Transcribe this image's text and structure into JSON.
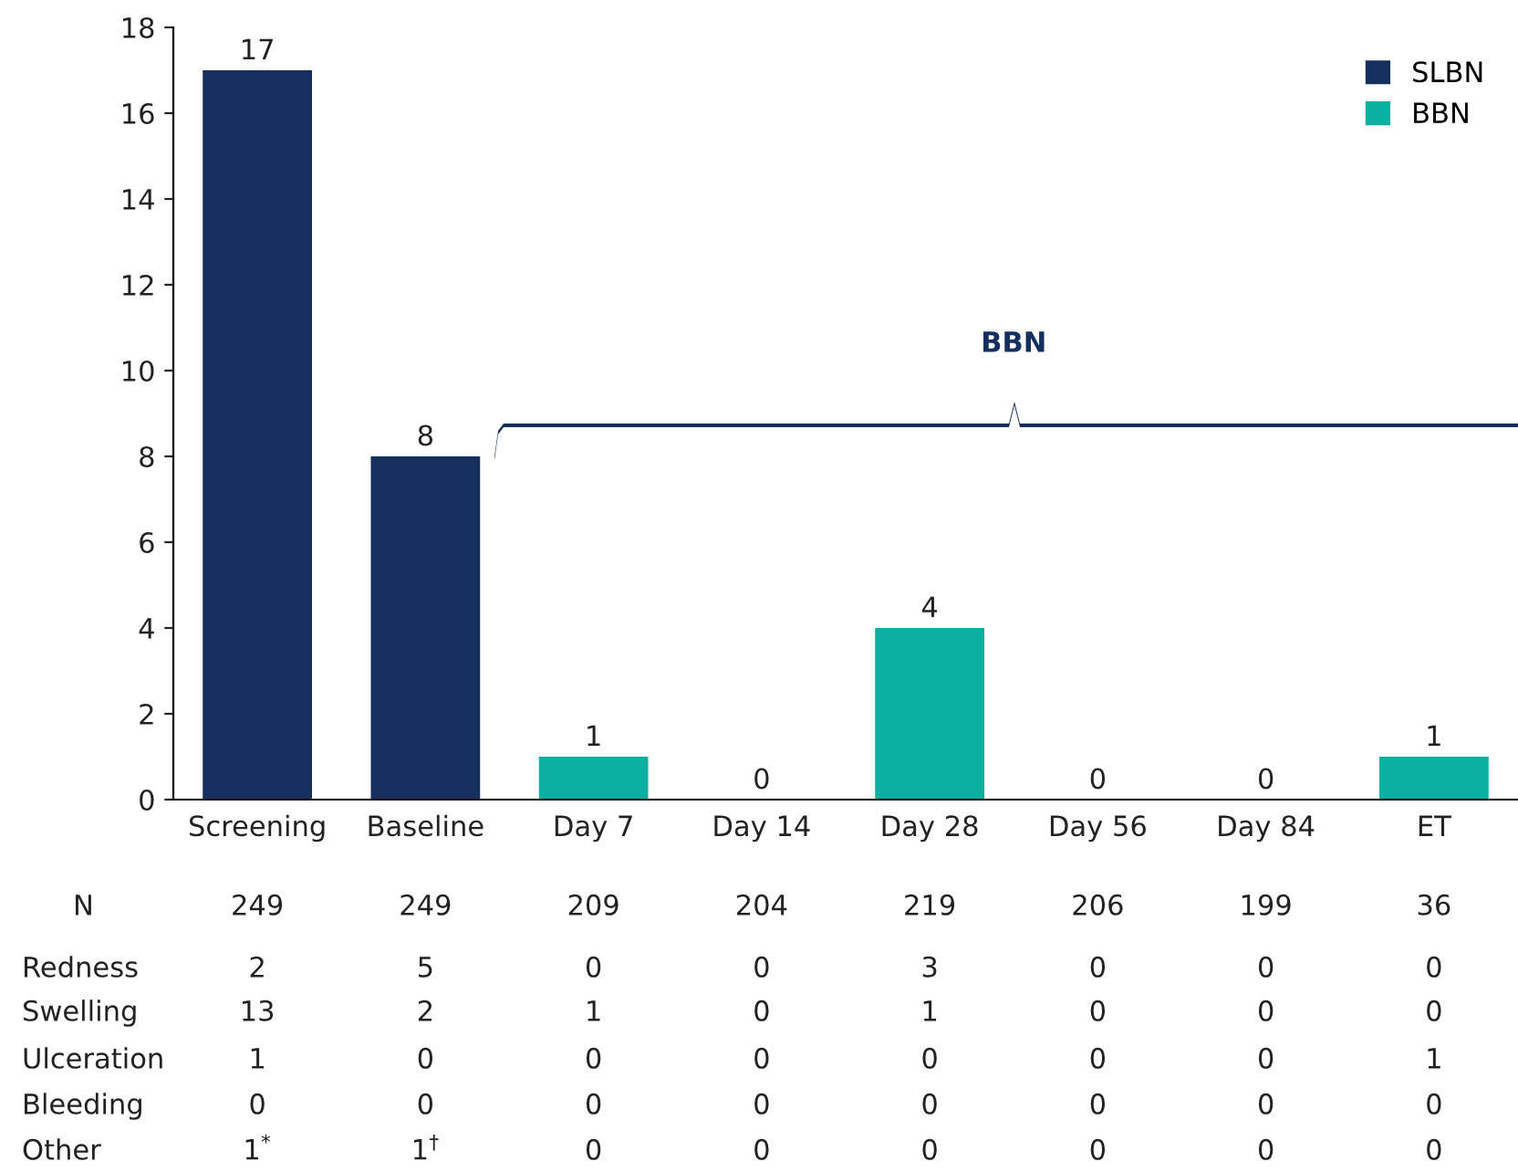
{
  "chart_data": {
    "type": "bar",
    "categories": [
      "Screening",
      "Baseline",
      "Day 7",
      "Day 14",
      "Day 28",
      "Day 56",
      "Day 84",
      "ET"
    ],
    "series": [
      {
        "name": "SLBN",
        "color": "#15305f",
        "values": [
          17,
          8,
          null,
          null,
          null,
          null,
          null,
          null
        ]
      },
      {
        "name": "BBN",
        "color": "#0bb0a3",
        "values": [
          null,
          null,
          1,
          0,
          4,
          0,
          0,
          1
        ]
      }
    ],
    "ylim": [
      0,
      18
    ],
    "yticks": [
      0,
      2,
      4,
      6,
      8,
      10,
      12,
      14,
      16,
      18
    ],
    "data_labels": true,
    "legend": "top right",
    "grid": false,
    "annotations": [
      "BBN",
      "N",
      "249",
      "249",
      "209",
      "204",
      "219",
      "206",
      "199",
      "36",
      "Redness",
      "2",
      "5",
      "0",
      "0",
      "3",
      "0",
      "0",
      "0",
      "Swelling",
      "13",
      "2",
      "1",
      "0",
      "1",
      "0",
      "0",
      "0",
      "Ulceration",
      "1",
      "0",
      "0",
      "0",
      "0",
      "0",
      "0",
      "1",
      "Bleeding",
      "0",
      "0",
      "0",
      "0",
      "0",
      "0",
      "0",
      "0",
      "Other",
      "1$^{*}$",
      "1$^{†}$",
      "0",
      "0",
      "0",
      "0",
      "0",
      "0"
    ]
  }
}
